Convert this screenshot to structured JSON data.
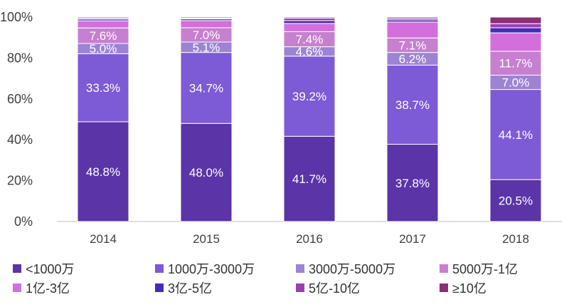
{
  "chart_data": {
    "type": "bar",
    "stacked": true,
    "categories": [
      "2014",
      "2015",
      "2016",
      "2017",
      "2018"
    ],
    "ylim": [
      0,
      100
    ],
    "yticks": [
      0,
      20,
      40,
      60,
      80,
      100
    ],
    "ytick_labels": [
      "0%",
      "20%",
      "40%",
      "60%",
      "80%",
      "100%"
    ],
    "legend_placement": "bottom",
    "series": [
      {
        "name": "<1000万",
        "color": "#5b34a8",
        "values": [
          48.8,
          48.0,
          41.7,
          37.8,
          20.5
        ],
        "labels": [
          "48.8%",
          "48.0%",
          "41.7%",
          "37.8%",
          "20.5%"
        ]
      },
      {
        "name": "1000万-3000万",
        "color": "#7d5ad6",
        "values": [
          33.3,
          34.7,
          39.2,
          38.7,
          44.1
        ],
        "labels": [
          "33.3%",
          "34.7%",
          "39.2%",
          "38.7%",
          "44.1%"
        ]
      },
      {
        "name": "3000万-5000万",
        "color": "#9d83d3",
        "values": [
          5.0,
          5.1,
          4.6,
          6.2,
          7.0
        ],
        "labels": [
          "5.0%",
          "5.1%",
          "4.6%",
          "6.2%",
          "7.0%"
        ]
      },
      {
        "name": "5000万-1亿",
        "color": "#c77fcf",
        "values": [
          7.6,
          7.0,
          7.4,
          7.1,
          11.7
        ],
        "labels": [
          "7.6%",
          "7.0%",
          "7.4%",
          "7.1%",
          "11.7%"
        ]
      },
      {
        "name": "1亿-3亿",
        "color": "#d36fdc",
        "values": [
          3.5,
          3.5,
          4.0,
          7.8,
          9.0
        ],
        "labels": [
          "",
          "",
          "",
          "",
          ""
        ]
      },
      {
        "name": "3亿-5亿",
        "color": "#4a2ab8",
        "values": [
          0.8,
          0.8,
          1.4,
          1.0,
          2.5
        ],
        "labels": [
          "",
          "",
          "",
          "",
          ""
        ]
      },
      {
        "name": "5亿-10亿",
        "color": "#9b3fb0",
        "values": [
          0.5,
          0.4,
          1.2,
          0.8,
          2.0
        ],
        "labels": [
          "",
          "",
          "",
          "",
          ""
        ]
      },
      {
        "name": "≥10亿",
        "color": "#8a2f78",
        "values": [
          0.5,
          0.5,
          0.5,
          0.6,
          3.2
        ],
        "labels": [
          "",
          "",
          "",
          "",
          ""
        ]
      }
    ]
  }
}
